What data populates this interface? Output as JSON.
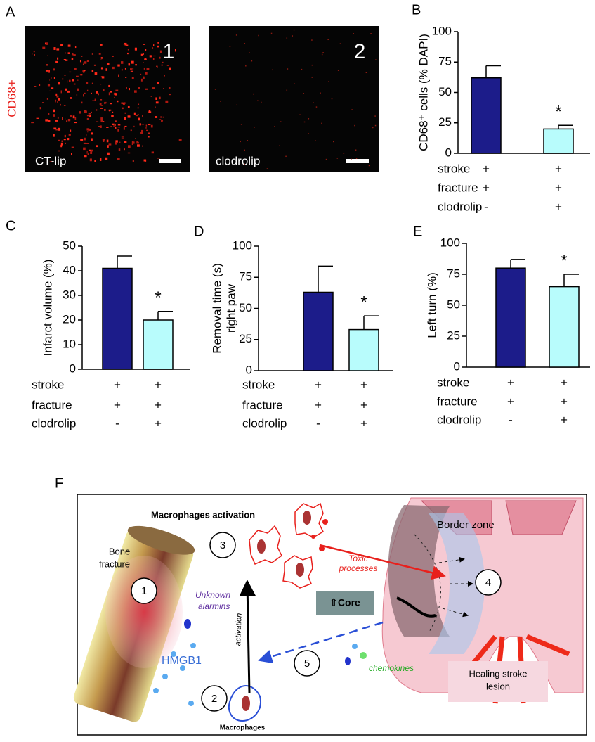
{
  "panels": [
    "A",
    "B",
    "C",
    "D",
    "E",
    "F"
  ],
  "panel_a": {
    "ylabel": "CD68+",
    "images": [
      {
        "number": "1",
        "label": "CT-lip"
      },
      {
        "number": "2",
        "label": "clodrolip"
      }
    ]
  },
  "chart_data": [
    {
      "type": "bar",
      "ylabel": [
        "CD68⁺ cells (% DAPI)"
      ],
      "categories": [
        null,
        null
      ],
      "values": [
        62,
        20
      ],
      "errors": [
        10,
        3
      ],
      "significance": [
        null,
        "*"
      ],
      "colors": [
        "#1c1c8a",
        "#b8fcfc"
      ],
      "ylim": [
        0,
        100
      ],
      "yticks": [
        0,
        25,
        50,
        75,
        100
      ],
      "conditions": {
        "labels": [
          "stroke",
          "fracture",
          "clodrolip"
        ],
        "signs": [
          [
            "+",
            "+"
          ],
          [
            "+",
            "+"
          ],
          [
            "-",
            "+"
          ]
        ]
      }
    },
    {
      "type": "bar",
      "ylabel": [
        "Infarct volume (%)"
      ],
      "categories": [
        null,
        null
      ],
      "values": [
        41,
        20
      ],
      "errors": [
        5,
        3.5
      ],
      "significance": [
        null,
        "*"
      ],
      "colors": [
        "#1c1c8a",
        "#b8fcfc"
      ],
      "ylim": [
        0,
        50
      ],
      "yticks": [
        0,
        10,
        20,
        30,
        40,
        50
      ],
      "conditions": {
        "labels": [
          "stroke",
          "fracture",
          "clodrolip"
        ],
        "signs": [
          [
            "+",
            "+"
          ],
          [
            "+",
            "+"
          ],
          [
            "-",
            "+"
          ]
        ]
      }
    },
    {
      "type": "bar",
      "ylabel": [
        "Removal time (s)",
        "right paw"
      ],
      "categories": [
        null,
        null
      ],
      "values": [
        63,
        33
      ],
      "errors": [
        21,
        11
      ],
      "significance": [
        null,
        "*"
      ],
      "colors": [
        "#1c1c8a",
        "#b8fcfc"
      ],
      "ylim": [
        0,
        100
      ],
      "yticks": [
        0,
        25,
        50,
        75,
        100
      ],
      "conditions": {
        "labels": [
          "stroke",
          "fracture",
          "clodrolip"
        ],
        "signs": [
          [
            "+",
            "+"
          ],
          [
            "+",
            "+"
          ],
          [
            "-",
            "+"
          ]
        ]
      }
    },
    {
      "type": "bar",
      "ylabel": [
        "Left turn (%)"
      ],
      "categories": [
        null,
        null
      ],
      "values": [
        80,
        65
      ],
      "errors": [
        7,
        10
      ],
      "significance": [
        null,
        "*"
      ],
      "colors": [
        "#1c1c8a",
        "#b8fcfc"
      ],
      "ylim": [
        0,
        100
      ],
      "yticks": [
        0,
        25,
        50,
        75,
        100
      ],
      "conditions": {
        "labels": [
          "stroke",
          "fracture",
          "clodrolip"
        ],
        "signs": [
          [
            "+",
            "+"
          ],
          [
            "+",
            "+"
          ],
          [
            "-",
            "+"
          ]
        ]
      }
    }
  ],
  "diagram": {
    "title": "Macrophages activation",
    "bone_fracture": [
      "Bone",
      "fracture"
    ],
    "alarmins": [
      "Unknown",
      "alarmins"
    ],
    "hmgb1": "HMGB1",
    "activation": "activation",
    "toxic": [
      "Toxic",
      "processes"
    ],
    "core": "⇧Core",
    "border_zone": "Border zone",
    "chemokines": "chemokines",
    "healing": [
      "Healing stroke",
      "lesion"
    ],
    "macrophages": "Macrophages",
    "steps": [
      "1",
      "2",
      "3",
      "4",
      "5"
    ]
  }
}
